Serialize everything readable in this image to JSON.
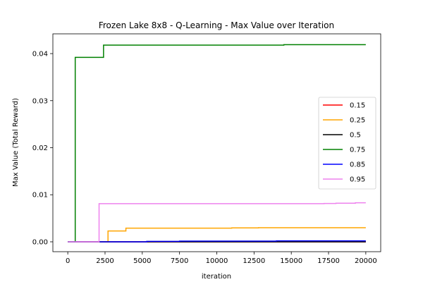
{
  "chart_data": {
    "type": "line",
    "title": "Frozen Lake 8x8 - Q-Learning - Max Value over Iteration",
    "xlabel": "iteration",
    "ylabel": "Max Value (Total Reward)",
    "xlim": [
      -1000,
      21000
    ],
    "ylim": [
      -0.0021,
      0.0442
    ],
    "x_ticks": [
      0,
      2500,
      5000,
      7500,
      10000,
      12500,
      15000,
      17500,
      20000
    ],
    "y_ticks": [
      0.0,
      0.01,
      0.02,
      0.03,
      0.04
    ],
    "x_tick_labels": [
      "0",
      "2500",
      "5000",
      "7500",
      "10000",
      "12500",
      "15000",
      "17500",
      "20000"
    ],
    "y_tick_labels": [
      "0.00",
      "0.01",
      "0.02",
      "0.03",
      "0.04"
    ],
    "grid": false,
    "legend_position": "center-right",
    "series": [
      {
        "name": "0.15",
        "color": "#ff0000",
        "points": [
          [
            0,
            0.0
          ],
          [
            20000,
            0.0
          ]
        ]
      },
      {
        "name": "0.25",
        "color": "#ffa500",
        "points": [
          [
            0,
            0.0
          ],
          [
            2700,
            0.0
          ],
          [
            2700,
            0.0023
          ],
          [
            3900,
            0.0023
          ],
          [
            3900,
            0.0029
          ],
          [
            11000,
            0.0029
          ],
          [
            11000,
            0.00295
          ],
          [
            12800,
            0.00295
          ],
          [
            12800,
            0.003
          ],
          [
            20000,
            0.003
          ]
        ]
      },
      {
        "name": "0.5",
        "color": "#000000",
        "points": [
          [
            0,
            0.0
          ],
          [
            20000,
            0.0
          ]
        ]
      },
      {
        "name": "0.75",
        "color": "#008000",
        "points": [
          [
            0,
            0.0
          ],
          [
            500,
            0.0
          ],
          [
            500,
            0.0392
          ],
          [
            2400,
            0.0392
          ],
          [
            2400,
            0.0418
          ],
          [
            14500,
            0.0418
          ],
          [
            14500,
            0.0419
          ],
          [
            20000,
            0.0419
          ]
        ]
      },
      {
        "name": "0.85",
        "color": "#0000ff",
        "points": [
          [
            0,
            0.0
          ],
          [
            5300,
            0.0
          ],
          [
            5300,
            0.0001
          ],
          [
            7500,
            0.0001
          ],
          [
            7500,
            0.00015
          ],
          [
            14000,
            0.00015
          ],
          [
            14000,
            0.0002
          ],
          [
            20000,
            0.0002
          ]
        ]
      },
      {
        "name": "0.95",
        "color": "#ee82ee",
        "points": [
          [
            0,
            0.0
          ],
          [
            2100,
            0.0
          ],
          [
            2100,
            0.0081
          ],
          [
            17200,
            0.0081
          ],
          [
            17200,
            0.00815
          ],
          [
            18000,
            0.00815
          ],
          [
            18000,
            0.0082
          ],
          [
            19300,
            0.0082
          ],
          [
            19300,
            0.0083
          ],
          [
            20000,
            0.0083
          ]
        ]
      }
    ]
  }
}
